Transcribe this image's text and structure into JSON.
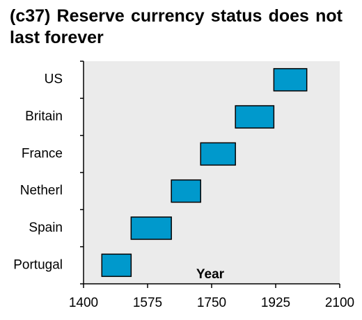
{
  "chart_data": {
    "type": "range-bar",
    "title": "(c37) Reserve currency status does not last forever",
    "categories": [
      "US",
      "Britain",
      "France",
      "Netherl",
      "Spain",
      "Portugal"
    ],
    "start": [
      1920,
      1815,
      1720,
      1640,
      1530,
      1450
    ],
    "end": [
      2010,
      1920,
      1815,
      1720,
      1640,
      1530
    ],
    "color": "#0099cc",
    "x_label": "Year",
    "xlim": [
      1400,
      2100
    ],
    "xticks": [
      1400,
      1575,
      1750,
      1925,
      2100
    ]
  }
}
